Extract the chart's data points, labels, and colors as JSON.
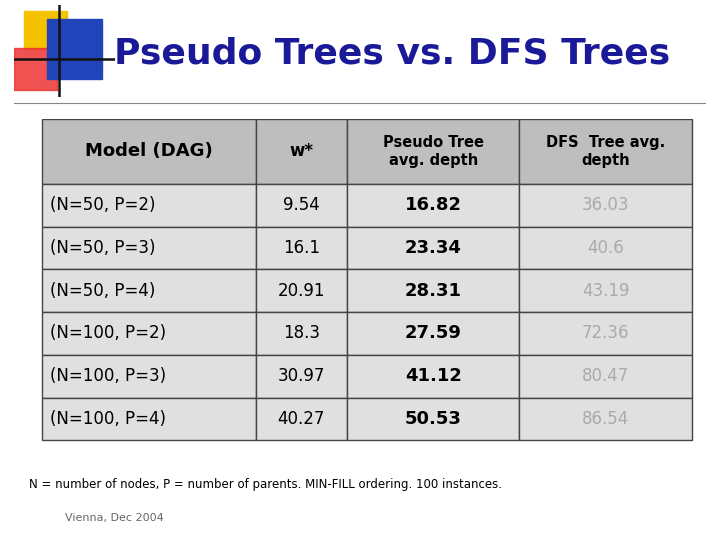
{
  "title": "Pseudo Trees vs. DFS Trees",
  "title_color": "#1a1a99",
  "bg_color": "#ffffff",
  "header_row": [
    "Model (DAG)",
    "w*",
    "Pseudo Tree\navg. depth",
    "DFS  Tree avg.\ndepth"
  ],
  "rows": [
    [
      "(N=50, P=2)",
      "9.54",
      "16.82",
      "36.03"
    ],
    [
      "(N=50, P=3)",
      "16.1",
      "23.34",
      "40.6"
    ],
    [
      "(N=50, P=4)",
      "20.91",
      "28.31",
      "43.19"
    ],
    [
      "(N=100, P=2)",
      "18.3",
      "27.59",
      "72.36"
    ],
    [
      "(N=100, P=3)",
      "30.97",
      "41.12",
      "80.47"
    ],
    [
      "(N=100, P=4)",
      "40.27",
      "50.53",
      "86.54"
    ]
  ],
  "footnote": "N = number of nodes, P = number of parents. MIN-FILL ordering. 100 instances.",
  "footnote2": "Vienna, Dec 2004",
  "header_bg": "#bebebe",
  "cell_bg": "#e0e0e0",
  "border_color": "#444444",
  "col3_color": "#000000",
  "col4_color": "#aaaaaa",
  "col1_color": "#000000",
  "col2_color": "#000000",
  "header_text_color": "#000000",
  "logo_yellow": "#f5c200",
  "logo_red": "#ee3333",
  "logo_blue": "#2244bb",
  "logo_line": "#111111"
}
